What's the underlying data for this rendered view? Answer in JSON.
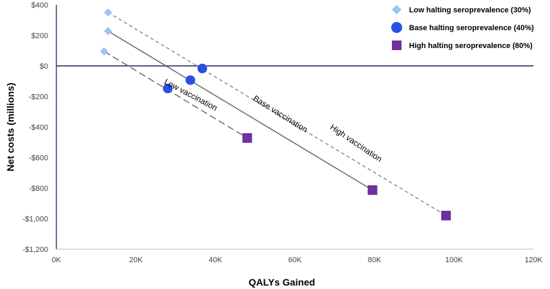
{
  "chart_data": {
    "type": "scatter",
    "title": "",
    "xlabel": "QALYs Gained",
    "ylabel": "Net costs (millions)",
    "xlim": [
      0,
      120000
    ],
    "ylim": [
      -1200,
      400
    ],
    "xticks": [
      {
        "value": 0,
        "label": "0K"
      },
      {
        "value": 20000,
        "label": "20K"
      },
      {
        "value": 40000,
        "label": "40K"
      },
      {
        "value": 60000,
        "label": "60K"
      },
      {
        "value": 80000,
        "label": "80K"
      },
      {
        "value": 100000,
        "label": "100K"
      },
      {
        "value": 120000,
        "label": "120K"
      }
    ],
    "yticks": [
      {
        "value": 400,
        "label": "$400"
      },
      {
        "value": 200,
        "label": "$200"
      },
      {
        "value": 0,
        "label": "$0"
      },
      {
        "value": -200,
        "label": "-$200"
      },
      {
        "value": -400,
        "label": "-$400"
      },
      {
        "value": -600,
        "label": "-$600"
      },
      {
        "value": -800,
        "label": "-$800"
      },
      {
        "value": -1000,
        "label": "-$1,000"
      },
      {
        "value": -1200,
        "label": "-$1,200"
      }
    ],
    "series": [
      {
        "name": "Low halting seroprevalence (30%)",
        "marker": "diamond",
        "color": "#9DC3F7",
        "points": [
          {
            "x": 12000,
            "y": 95
          },
          {
            "x": 13000,
            "y": 228
          },
          {
            "x": 13000,
            "y": 350
          }
        ]
      },
      {
        "name": "Base halting seroprevalence (40%)",
        "marker": "circle",
        "color": "#2950E0",
        "points": [
          {
            "x": 28000,
            "y": -148
          },
          {
            "x": 33700,
            "y": -93
          },
          {
            "x": 36700,
            "y": -17
          }
        ]
      },
      {
        "name": "High halting seroprevalence (80%)",
        "marker": "square",
        "color": "#7030A0",
        "points": [
          {
            "x": 48000,
            "y": -472
          },
          {
            "x": 79500,
            "y": -813
          },
          {
            "x": 98000,
            "y": -980
          }
        ]
      }
    ],
    "lines": [
      {
        "name": "Low vaccination",
        "style": "long-dash",
        "color": "#595959",
        "from": {
          "x": 12000,
          "y": 95
        },
        "to": {
          "x": 48000,
          "y": -472
        },
        "label_at": {
          "x": 33500,
          "y": -205
        },
        "label_angle": 28
      },
      {
        "name": "Base vaccination",
        "style": "solid",
        "color": "#595959",
        "from": {
          "x": 13000,
          "y": 228
        },
        "to": {
          "x": 79500,
          "y": -813
        },
        "label_at": {
          "x": 56000,
          "y": -330
        },
        "label_angle": 32
      },
      {
        "name": "High vaccination",
        "style": "short-dash",
        "color": "#7f7f7f",
        "from": {
          "x": 13000,
          "y": 350
        },
        "to": {
          "x": 98000,
          "y": -980
        },
        "label_at": {
          "x": 75000,
          "y": -520
        },
        "label_angle": 34
      }
    ],
    "zero_line": {
      "y": 0,
      "color": "#1F2A5C"
    },
    "legend_position": "top-right"
  }
}
